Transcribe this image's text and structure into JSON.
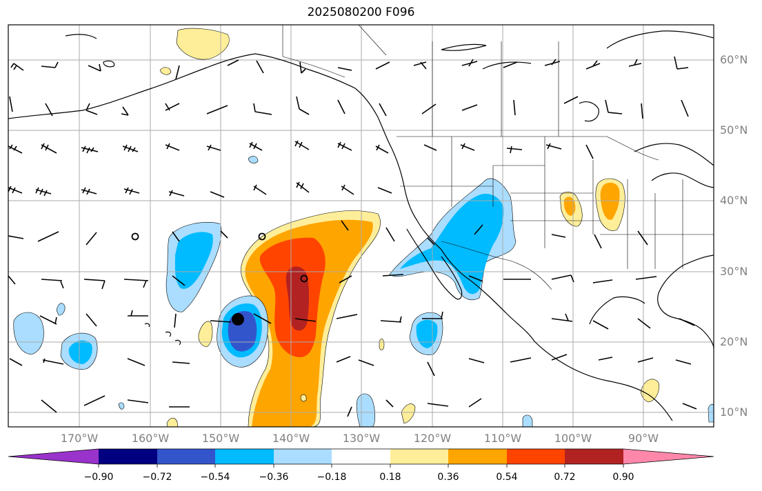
{
  "title": "2025080200 F096",
  "lat_labels": [
    "60°N",
    "50°N",
    "40°N",
    "30°N",
    "20°N",
    "10°N"
  ],
  "lon_labels": [
    "170°W",
    "160°W",
    "150°W",
    "140°W",
    "130°W",
    "120°W",
    "110°W",
    "100°W",
    "90°W"
  ],
  "colorbar": {
    "ticks": [
      "−0.90",
      "−0.72",
      "−0.54",
      "−0.36",
      "−0.18",
      "0.18",
      "0.36",
      "0.54",
      "0.72",
      "0.90"
    ],
    "colors": [
      "#9933cc",
      "#000080",
      "#3355cc",
      "#00bbff",
      "#aaddff",
      "#ffffff",
      "#ffee99",
      "#ffa500",
      "#ff4400",
      "#b22222",
      "#ff88aa"
    ]
  },
  "palette": {
    "dark_red": "#b22222",
    "red_orange": "#ff4400",
    "orange": "#ffa500",
    "light_yellow": "#ffee99",
    "light_blue": "#aaddff",
    "cyan": "#00bbff",
    "royal_blue": "#3355cc",
    "grid": "#aaaaaa",
    "coast": "#000000"
  }
}
